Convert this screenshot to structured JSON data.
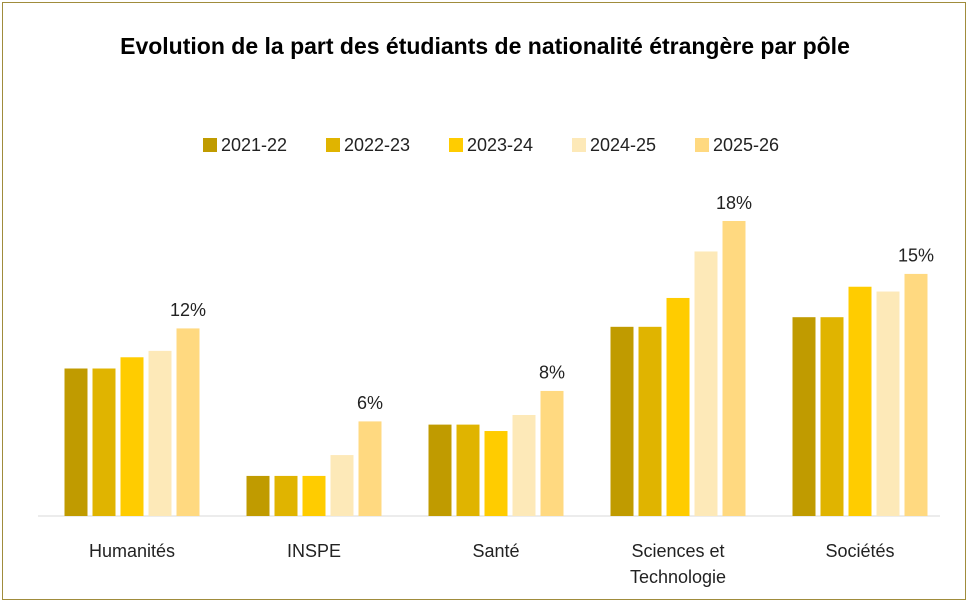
{
  "chart_data": {
    "type": "bar",
    "title": "Evolution de la part des étudiants de nationalité étrangère par pôle",
    "categories": [
      "Humanités",
      "INSPE",
      "Santé",
      "Sciences et Technologie",
      "Sociétés"
    ],
    "series": [
      {
        "name": "2021-22",
        "color": "#c09b00",
        "values": [
          9.2,
          2.5,
          5.7,
          11.8,
          12.4
        ]
      },
      {
        "name": "2022-23",
        "color": "#e0b400",
        "values": [
          9.2,
          2.5,
          5.7,
          11.8,
          12.4
        ]
      },
      {
        "name": "2023-24",
        "color": "#ffcc00",
        "values": [
          9.9,
          2.5,
          5.3,
          13.6,
          14.3
        ]
      },
      {
        "name": "2024-25",
        "color": "#fde9b8",
        "values": [
          10.3,
          3.8,
          6.3,
          16.5,
          14.0
        ]
      },
      {
        "name": "2025-26",
        "color": "#ffd980",
        "values": [
          11.7,
          5.9,
          7.8,
          18.4,
          15.1
        ],
        "value_labels": [
          "12%",
          "6%",
          "8%",
          "18%",
          "15%"
        ]
      }
    ],
    "legend": "top"
  }
}
